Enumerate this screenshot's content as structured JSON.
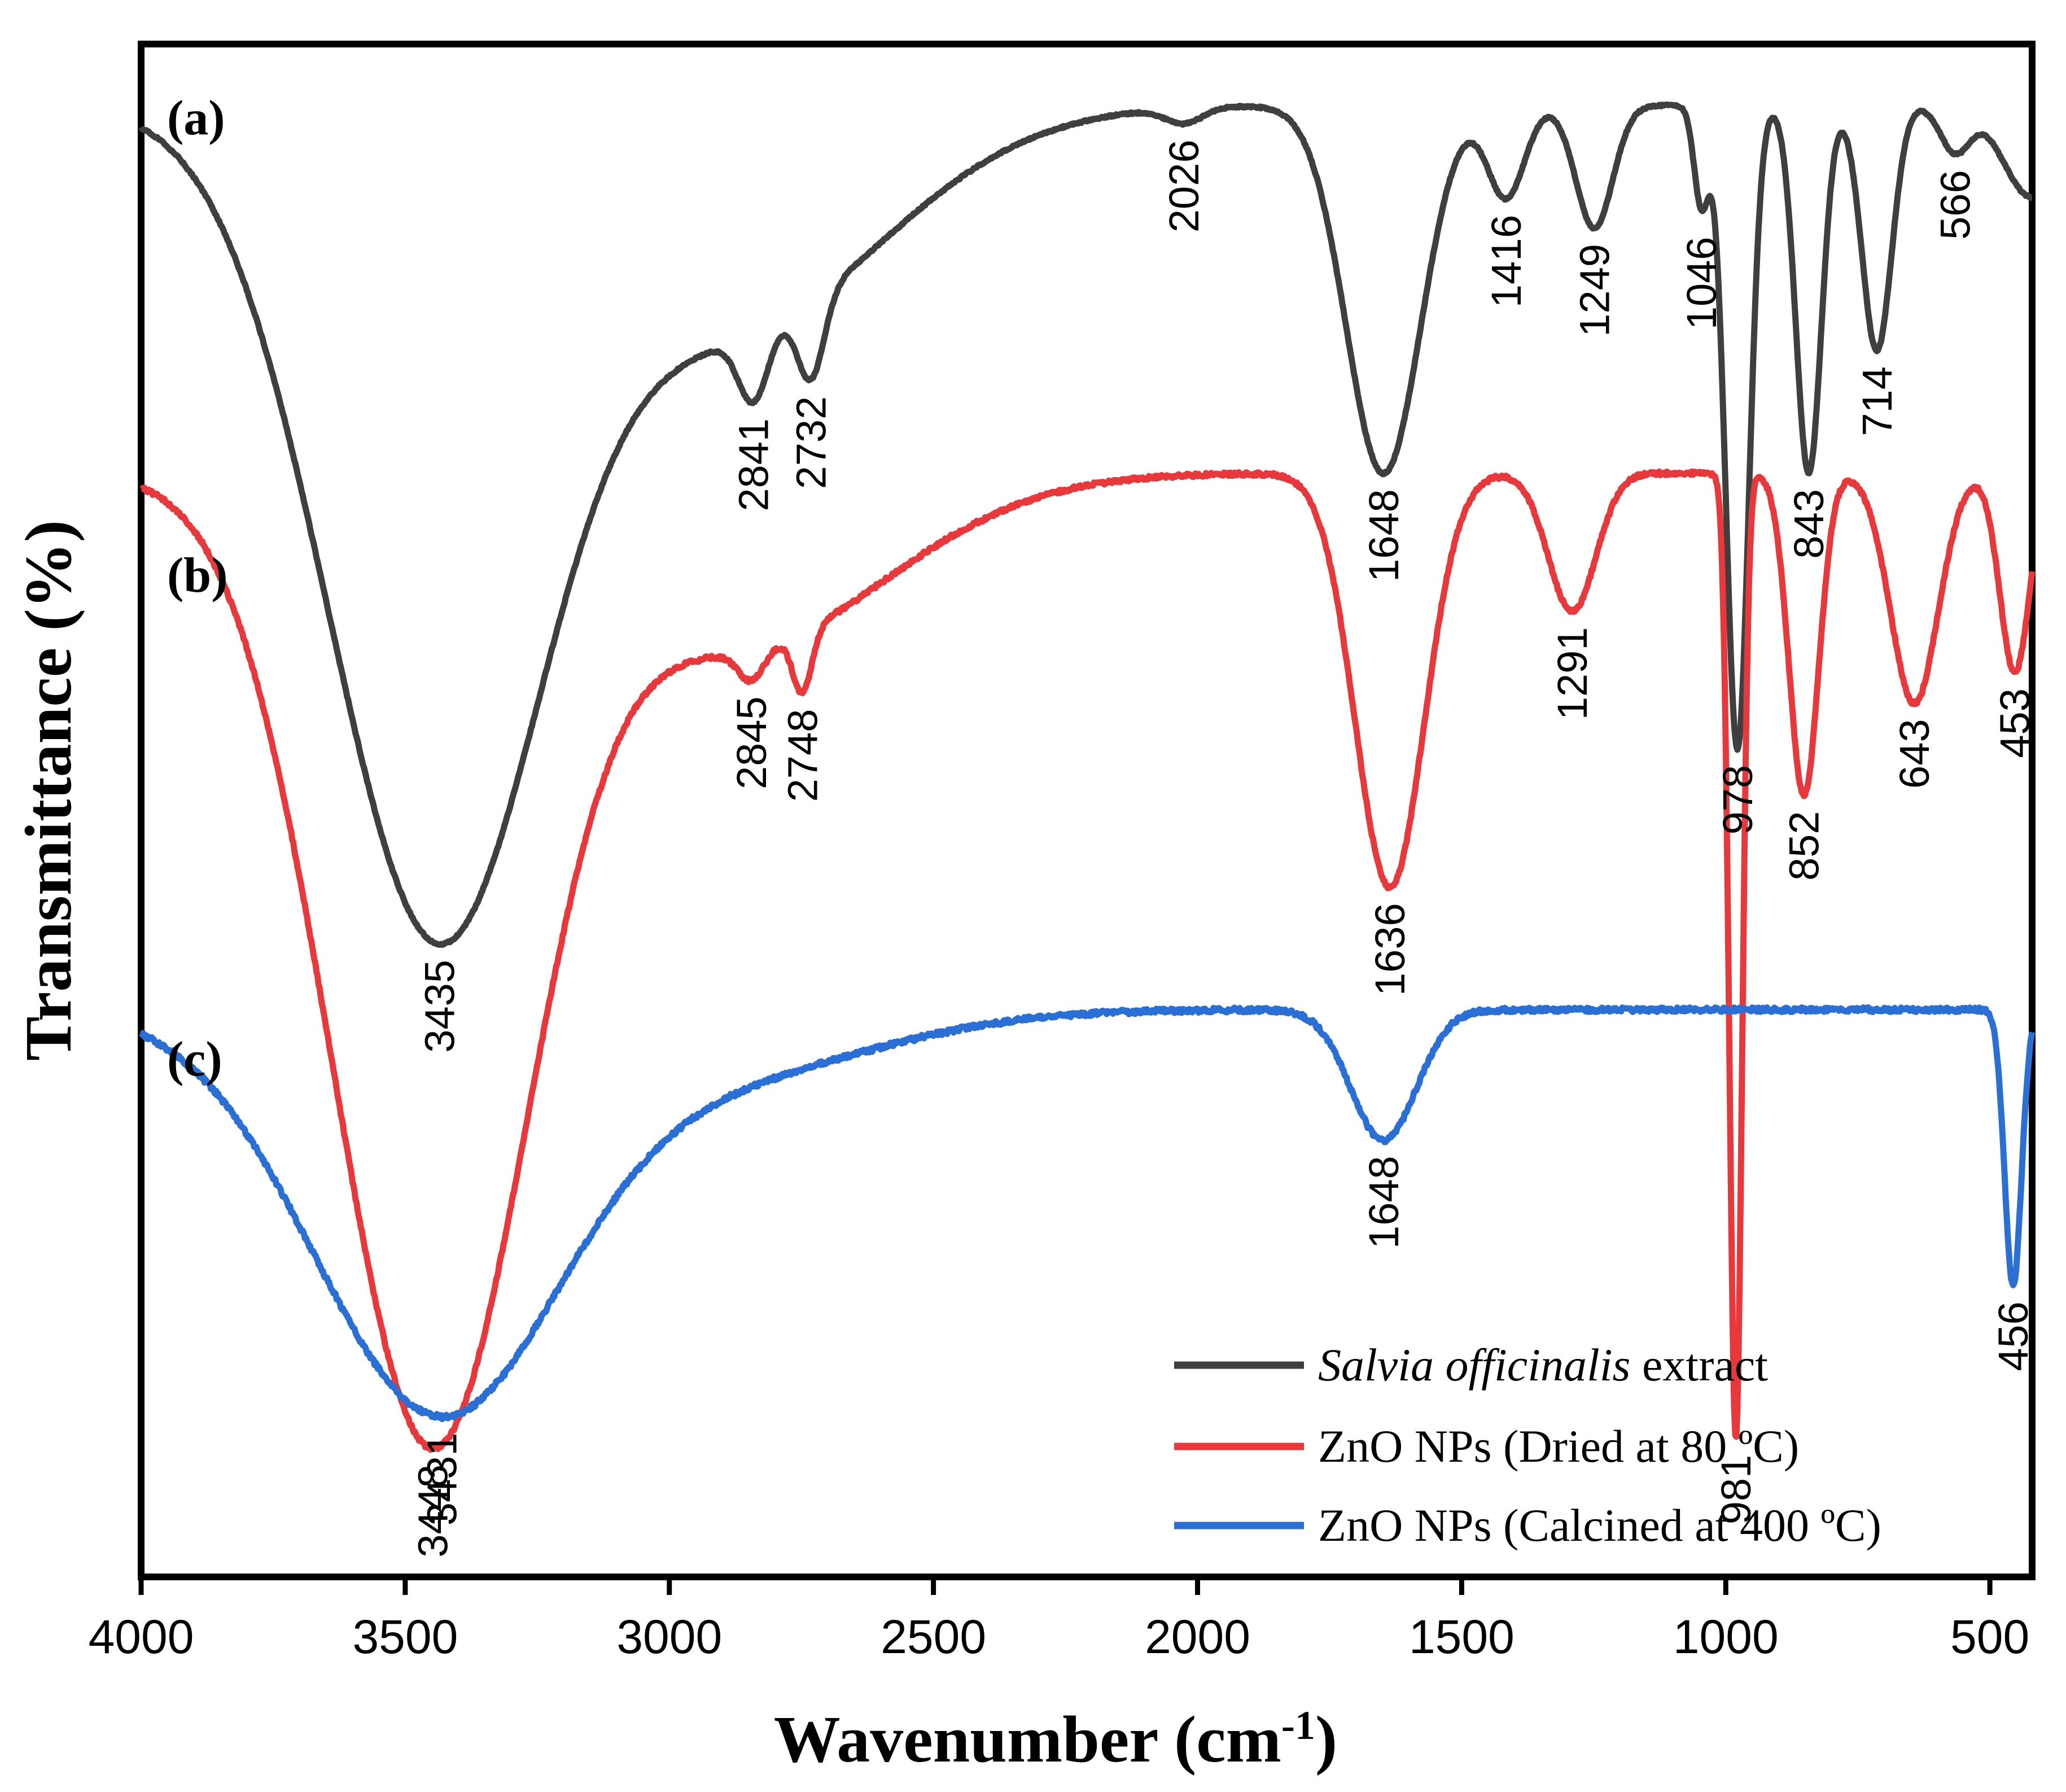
{
  "chart_data": {
    "type": "line",
    "xlabel": "Wavenumber (cm",
    "xlabel_sup": "-1",
    "xlabel_close": ")",
    "ylabel": "Transmittance (%)",
    "xlim": [
      4000,
      420
    ],
    "x_ticks": [
      4000,
      3500,
      3000,
      2500,
      2000,
      1500,
      1000,
      500
    ],
    "x_tick_labels": [
      "4000",
      "3500",
      "3000",
      "2500",
      "2000",
      "1500",
      "1000",
      "500"
    ],
    "y_ticks_shown": false,
    "series": [
      {
        "id": "a",
        "panel_label": "(a)",
        "name_italic": "Salvia officinalis",
        "name_rest": " extract",
        "color": "#3f3f3f",
        "baseline": 0.96,
        "peaks": [
          {
            "x": 3435,
            "label": "3435"
          },
          {
            "x": 2841,
            "label": "2841"
          },
          {
            "x": 2732,
            "label": "2732"
          },
          {
            "x": 2026,
            "label": "2026"
          },
          {
            "x": 1648,
            "label": "1648"
          },
          {
            "x": 1416,
            "label": "1416"
          },
          {
            "x": 1249,
            "label": "1249"
          },
          {
            "x": 1046,
            "label": "1046"
          },
          {
            "x": 978,
            "label": "978"
          },
          {
            "x": 843,
            "label": "843"
          },
          {
            "x": 714,
            "label": "714"
          },
          {
            "x": 566,
            "label": "566"
          }
        ]
      },
      {
        "id": "b",
        "panel_label": "(b)",
        "name": "ZnO NPs (Dried at 80 ºC)",
        "color": "#e8383b",
        "baseline": 0.72,
        "peaks": [
          {
            "x": 3448,
            "label": "3448"
          },
          {
            "x": 2845,
            "label": "2845"
          },
          {
            "x": 2748,
            "label": "2748"
          },
          {
            "x": 1636,
            "label": "1636"
          },
          {
            "x": 1291,
            "label": "1291"
          },
          {
            "x": 981,
            "label": "981"
          },
          {
            "x": 852,
            "label": "852"
          },
          {
            "x": 643,
            "label": "643"
          },
          {
            "x": 453,
            "label": "453"
          }
        ]
      },
      {
        "id": "c",
        "panel_label": "(c)",
        "name": "ZnO NPs (Calcined at 400 ºC)",
        "color": "#2a6fd6",
        "baseline": 0.37,
        "peaks": [
          {
            "x": 3431,
            "label": "3431"
          },
          {
            "x": 1648,
            "label": "1648"
          },
          {
            "x": 456,
            "label": "456"
          }
        ]
      }
    ],
    "legend_position": "bottom-right"
  }
}
